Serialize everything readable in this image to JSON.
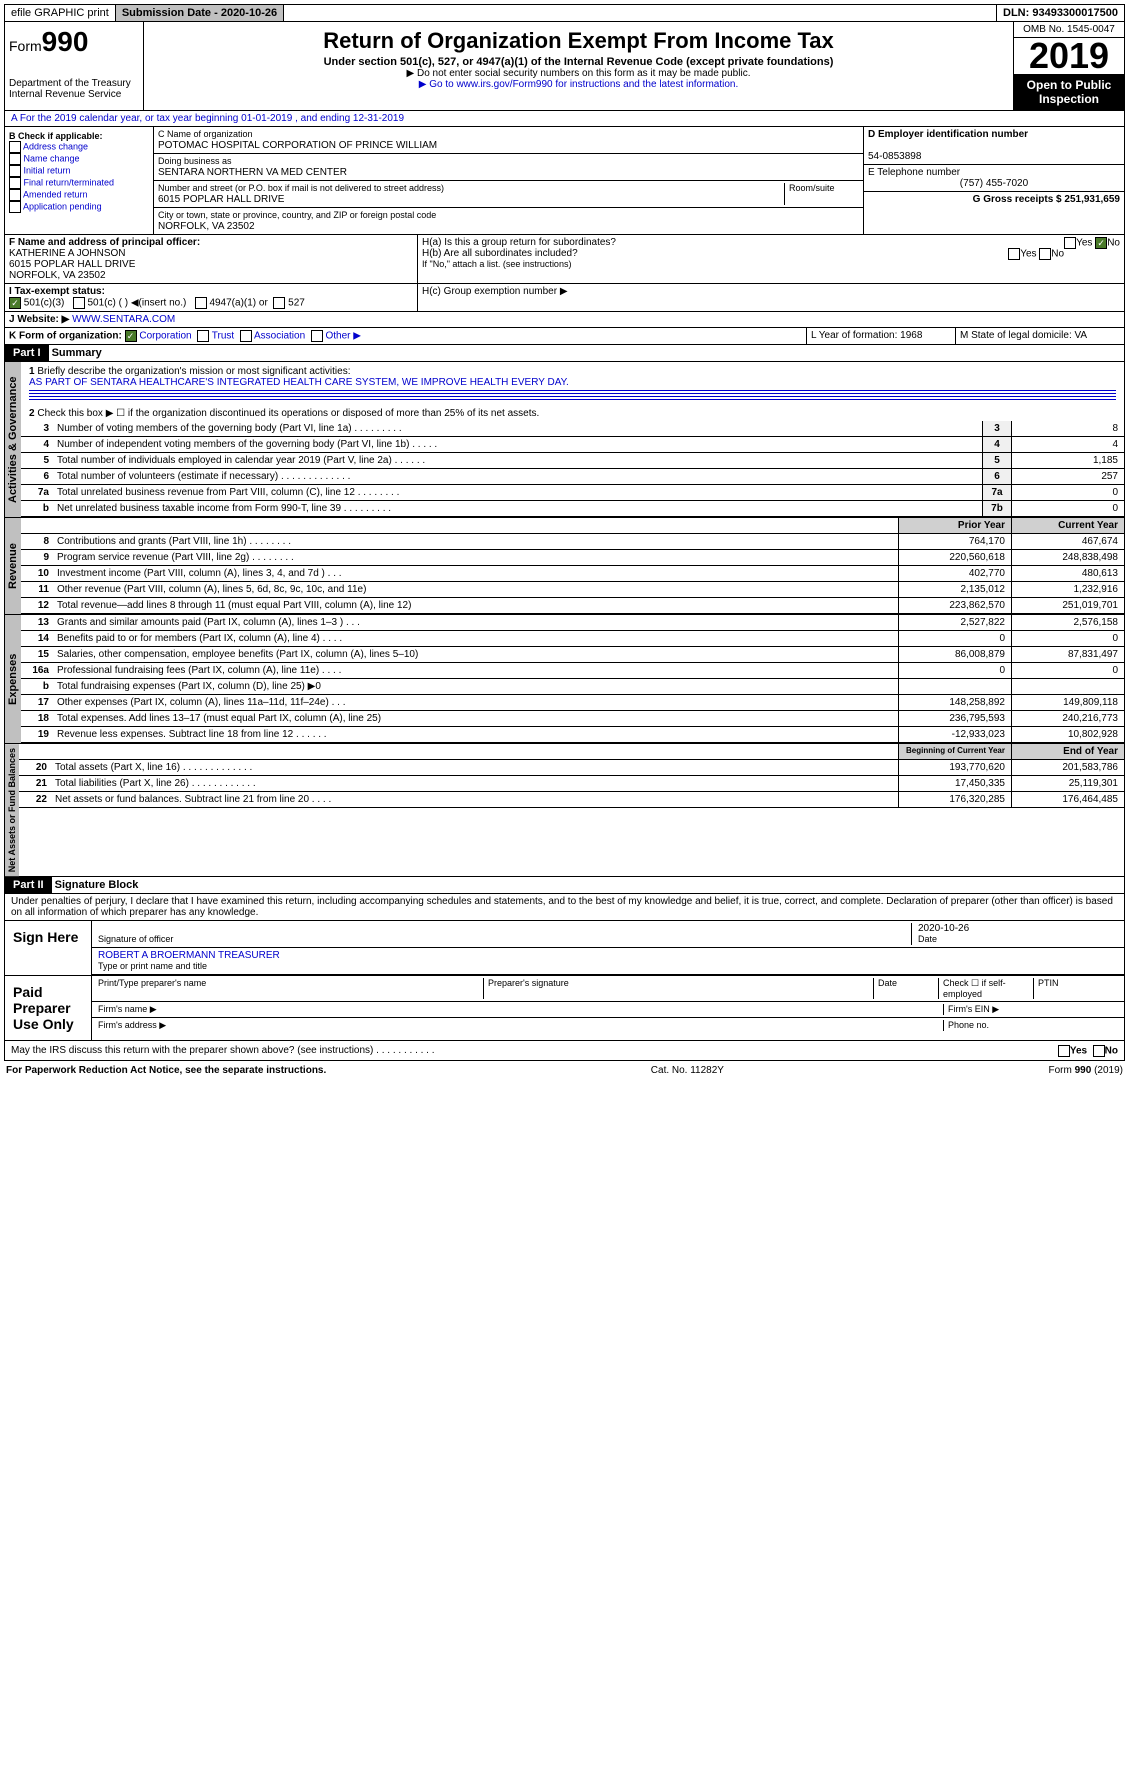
{
  "topbar": {
    "efile": "efile GRAPHIC print",
    "subdate_label": "Submission Date - 2020-10-26",
    "dln": "DLN: 93493300017500"
  },
  "header": {
    "form": "Form",
    "num": "990",
    "dept": "Department of the Treasury\nInternal Revenue Service",
    "title": "Return of Organization Exempt From Income Tax",
    "sub": "Under section 501(c), 527, or 4947(a)(1) of the Internal Revenue Code (except private foundations)",
    "note1": "▶ Do not enter social security numbers on this form as it may be made public.",
    "note2": "▶ Go to www.irs.gov/Form990 for instructions and the latest information.",
    "omb": "OMB No. 1545-0047",
    "year": "2019",
    "inspect": "Open to Public Inspection"
  },
  "sectA": "A For the 2019 calendar year, or tax year beginning 01-01-2019   , and ending 12-31-2019",
  "B": {
    "label": "B Check if applicable:",
    "items": [
      "Address change",
      "Name change",
      "Initial return",
      "Final return/terminated",
      "Amended return",
      "Application pending"
    ]
  },
  "C": {
    "name_label": "C Name of organization",
    "name": "POTOMAC HOSPITAL CORPORATION OF PRINCE WILLIAM",
    "dba_label": "Doing business as",
    "dba": "SENTARA NORTHERN VA MED CENTER",
    "addr_label": "Number and street (or P.O. box if mail is not delivered to street address)",
    "room": "Room/suite",
    "addr": "6015 POPLAR HALL DRIVE",
    "city_label": "City or town, state or province, country, and ZIP or foreign postal code",
    "city": "NORFOLK, VA  23502"
  },
  "D": {
    "label": "D Employer identification number",
    "val": "54-0853898"
  },
  "E": {
    "label": "E Telephone number",
    "val": "(757) 455-7020"
  },
  "G": {
    "label": "G Gross receipts $ 251,931,659"
  },
  "F": {
    "label": "F  Name and address of principal officer:",
    "val": "KATHERINE A JOHNSON\n6015 POPLAR HALL DRIVE\nNORFOLK, VA  23502"
  },
  "H": {
    "a": "H(a)  Is this a group return for subordinates?",
    "b": "H(b)  Are all subordinates included?",
    "note": "If \"No,\" attach a list. (see instructions)",
    "c": "H(c)  Group exemption number ▶",
    "yes": "Yes",
    "no": "No"
  },
  "I": {
    "label": "I Tax-exempt status:",
    "opts": [
      "501(c)(3)",
      "501(c) ( ) ◀(insert no.)",
      "4947(a)(1) or",
      "527"
    ]
  },
  "J": {
    "label": "J Website: ▶",
    "val": "WWW.SENTARA.COM"
  },
  "K": {
    "label": "K Form of organization:",
    "opts": [
      "Corporation",
      "Trust",
      "Association",
      "Other ▶"
    ]
  },
  "L": {
    "label": "L Year of formation: 1968"
  },
  "M": {
    "label": "M State of legal domicile: VA"
  },
  "part1": {
    "hdr": "Part I",
    "title": "Summary",
    "vtab": "Activities & Governance",
    "l1": "Briefly describe the organization's mission or most significant activities:",
    "l1v": "AS PART OF SENTARA HEALTHCARE'S INTEGRATED HEALTH CARE SYSTEM, WE IMPROVE HEALTH EVERY DAY.",
    "l2": "Check this box ▶ ☐  if the organization discontinued its operations or disposed of more than 25% of its net assets.",
    "lines": [
      {
        "n": "3",
        "d": "Number of voting members of the governing body (Part VI, line 1a)   .    .    .    .    .    .    .    .    .",
        "b": "3",
        "v": "8"
      },
      {
        "n": "4",
        "d": "Number of independent voting members of the governing body (Part VI, line 1b)   .    .    .    .    .",
        "b": "4",
        "v": "4"
      },
      {
        "n": "5",
        "d": "Total number of individuals employed in calendar year 2019 (Part V, line 2a)   .    .    .    .    .    .",
        "b": "5",
        "v": "1,185"
      },
      {
        "n": "6",
        "d": "Total number of volunteers (estimate if necessary)   .    .    .    .    .    .    .    .    .    .    .    .    .",
        "b": "6",
        "v": "257"
      },
      {
        "n": "7a",
        "d": "Total unrelated business revenue from Part VIII, column (C), line 12   .    .    .    .    .    .    .    .",
        "b": "7a",
        "v": "0"
      },
      {
        "n": "b",
        "d": "Net unrelated business taxable income from Form 990-T, line 39   .    .    .    .    .    .    .    .    .",
        "b": "7b",
        "v": "0"
      }
    ]
  },
  "revenue": {
    "vtab": "Revenue",
    "h1": "Prior Year",
    "h2": "Current Year",
    "lines": [
      {
        "n": "8",
        "d": "Contributions and grants (Part VIII, line 1h)    .    .    .    .    .    .    .    .",
        "p": "764,170",
        "c": "467,674"
      },
      {
        "n": "9",
        "d": "Program service revenue (Part VIII, line 2g)    .    .    .    .    .    .    .    .",
        "p": "220,560,618",
        "c": "248,838,498"
      },
      {
        "n": "10",
        "d": "Investment income (Part VIII, column (A), lines 3, 4, and 7d )    .    .    .",
        "p": "402,770",
        "c": "480,613"
      },
      {
        "n": "11",
        "d": "Other revenue (Part VIII, column (A), lines 5, 6d, 8c, 9c, 10c, and 11e)",
        "p": "2,135,012",
        "c": "1,232,916"
      },
      {
        "n": "12",
        "d": "Total revenue—add lines 8 through 11 (must equal Part VIII, column (A), line 12)",
        "p": "223,862,570",
        "c": "251,019,701"
      }
    ]
  },
  "expenses": {
    "vtab": "Expenses",
    "lines": [
      {
        "n": "13",
        "d": "Grants and similar amounts paid (Part IX, column (A), lines 1–3 )   .    .    .",
        "p": "2,527,822",
        "c": "2,576,158"
      },
      {
        "n": "14",
        "d": "Benefits paid to or for members (Part IX, column (A), line 4)   .    .    .    .",
        "p": "0",
        "c": "0"
      },
      {
        "n": "15",
        "d": "Salaries, other compensation, employee benefits (Part IX, column (A), lines 5–10)",
        "p": "86,008,879",
        "c": "87,831,497"
      },
      {
        "n": "16a",
        "d": "Professional fundraising fees (Part IX, column (A), line 11e)   .    .    .    .",
        "p": "0",
        "c": "0"
      },
      {
        "n": "b",
        "d": "Total fundraising expenses (Part IX, column (D), line 25) ▶0",
        "p": "",
        "c": ""
      },
      {
        "n": "17",
        "d": "Other expenses (Part IX, column (A), lines 11a–11d, 11f–24e)   .    .    .",
        "p": "148,258,892",
        "c": "149,809,118"
      },
      {
        "n": "18",
        "d": "Total expenses. Add lines 13–17 (must equal Part IX, column (A), line 25)",
        "p": "236,795,593",
        "c": "240,216,773"
      },
      {
        "n": "19",
        "d": "Revenue less expenses. Subtract line 18 from line 12   .    .    .    .    .    .",
        "p": "-12,933,023",
        "c": "10,802,928"
      }
    ]
  },
  "netassets": {
    "vtab": "Net Assets or Fund Balances",
    "h1": "Beginning of Current Year",
    "h2": "End of Year",
    "lines": [
      {
        "n": "20",
        "d": "Total assets (Part X, line 16)   .    .    .    .    .    .    .    .    .    .    .    .    .",
        "p": "193,770,620",
        "c": "201,583,786"
      },
      {
        "n": "21",
        "d": "Total liabilities (Part X, line 26)   .    .    .    .    .    .    .    .    .    .    .    .",
        "p": "17,450,335",
        "c": "25,119,301"
      },
      {
        "n": "22",
        "d": "Net assets or fund balances. Subtract line 21 from line 20   .    .    .    .",
        "p": "176,320,285",
        "c": "176,464,485"
      }
    ]
  },
  "part2": {
    "hdr": "Part II",
    "title": "Signature Block",
    "decl": "Under penalties of perjury, I declare that I have examined this return, including accompanying schedules and statements, and to the best of my knowledge and belief, it is true, correct, and complete. Declaration of preparer (other than officer) is based on all information of which preparer has any knowledge.",
    "sign": "Sign Here",
    "sigoff": "Signature of officer",
    "date": "2020-10-26",
    "date_label": "Date",
    "name": "ROBERT A BROERMANN  TREASURER",
    "name_label": "Type or print name and title",
    "paid": "Paid Preparer Use Only",
    "pp": [
      "Print/Type preparer's name",
      "Preparer's signature",
      "Date",
      "Check ☐ if self-employed",
      "PTIN"
    ],
    "firm": "Firm's name  ▶",
    "ein": "Firm's EIN ▶",
    "addr": "Firm's address ▶",
    "phone": "Phone no.",
    "discuss": "May the IRS discuss this return with the preparer shown above? (see instructions)    .    .    .    .    .    .    .    .    .    .    .",
    "yes": "Yes",
    "no": "No"
  },
  "foot": {
    "l": "For Paperwork Reduction Act Notice, see the separate instructions.",
    "m": "Cat. No. 11282Y",
    "r": "Form 990 (2019)"
  }
}
